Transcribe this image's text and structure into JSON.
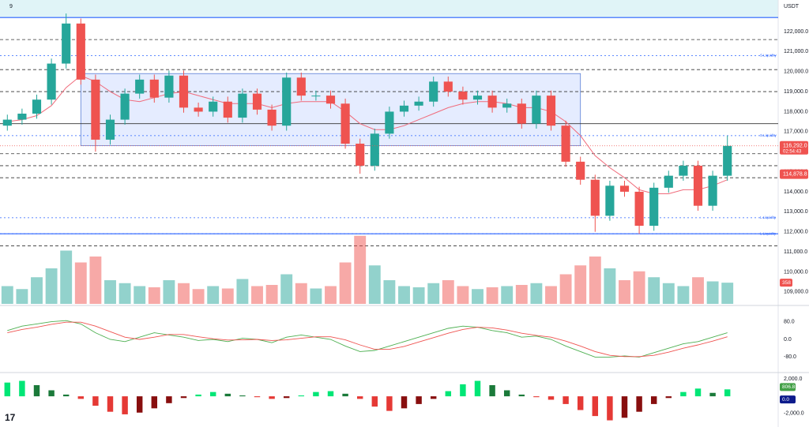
{
  "chart_data": {
    "type": "candlestick",
    "interval": "9",
    "currency": "USDT",
    "open": [
      117300,
      117600,
      117900,
      118600,
      120400,
      122400,
      119600,
      116600,
      117600,
      118900,
      119600,
      118700,
      119800,
      118200,
      118000,
      118500,
      117700,
      118900,
      118100,
      117300,
      119700,
      118800,
      118800,
      118400,
      116400,
      115300,
      116900,
      118000,
      118300,
      118500,
      119500,
      119000,
      118600,
      118800,
      118200,
      118400,
      117400,
      118800,
      117300,
      115500,
      114600,
      112800,
      114300,
      114000,
      112300,
      114200,
      114800,
      115300,
      113300,
      114800
    ],
    "high": [
      117850,
      118150,
      118850,
      120650,
      122900,
      122650,
      119850,
      117850,
      119150,
      119850,
      119850,
      120050,
      120050,
      118450,
      118750,
      118750,
      119150,
      119150,
      118350,
      119950,
      119950,
      119050,
      119050,
      118650,
      116650,
      117150,
      118250,
      118550,
      118750,
      119750,
      119750,
      119250,
      119050,
      119050,
      118650,
      118650,
      119050,
      119050,
      117550,
      115750,
      114850,
      114550,
      114550,
      114250,
      114450,
      115050,
      115550,
      115550,
      115050,
      116800
    ],
    "low": [
      117050,
      117350,
      117650,
      118350,
      120150,
      119350,
      116000,
      116350,
      117350,
      118650,
      118450,
      118450,
      117950,
      117750,
      117750,
      117450,
      117450,
      117850,
      117050,
      117050,
      118550,
      118550,
      118150,
      116150,
      114900,
      115050,
      116650,
      117750,
      118050,
      118250,
      118750,
      118350,
      118350,
      117950,
      117950,
      117150,
      117150,
      117050,
      115250,
      114350,
      112000,
      112550,
      113750,
      111900,
      112050,
      113950,
      114550,
      113050,
      113050,
      114550
    ],
    "close": [
      117600,
      117900,
      118600,
      120400,
      122400,
      119600,
      116600,
      117600,
      118900,
      119600,
      118700,
      119800,
      118200,
      118000,
      118500,
      117700,
      118900,
      118100,
      117300,
      119700,
      118800,
      118800,
      118400,
      116400,
      115300,
      116900,
      118000,
      118300,
      118500,
      119500,
      119000,
      118600,
      118800,
      118200,
      118400,
      117400,
      118800,
      117300,
      115500,
      114600,
      112800,
      114300,
      114000,
      112300,
      114200,
      114800,
      115300,
      113300,
      114800,
      116292
    ],
    "ma": [
      117500,
      117600,
      117800,
      118300,
      119200,
      119800,
      119500,
      119000,
      118600,
      118500,
      118700,
      118900,
      119000,
      118800,
      118600,
      118400,
      118400,
      118400,
      118200,
      118400,
      118500,
      118500,
      118500,
      118000,
      117400,
      117100,
      117100,
      117300,
      117600,
      117900,
      118200,
      118400,
      118500,
      118500,
      118400,
      118200,
      118200,
      118000,
      117500,
      116800,
      115800,
      115200,
      114700,
      114100,
      113900,
      113900,
      114100,
      114100,
      114300,
      114600
    ],
    "up_color": "#26a69a",
    "down_color": "#ef5350",
    "ma_color": "#f06b7b",
    "ylim": [
      108400,
      123575
    ],
    "yticks": [
      {
        "value": 109000,
        "label": "109,000.0"
      },
      {
        "value": 110000,
        "label": "110,000.0"
      },
      {
        "value": 111000,
        "label": "111,000.0"
      },
      {
        "value": 112000,
        "label": "112,000.0"
      },
      {
        "value": 113000,
        "label": "113,000.0"
      },
      {
        "value": 114000,
        "label": "114,000.0"
      },
      {
        "value": 115000,
        "label": "115,000.0"
      },
      {
        "value": 116000,
        "label": "116,000.0"
      },
      {
        "value": 117000,
        "label": "117,000.0"
      },
      {
        "value": 118000,
        "label": "118,000.0"
      },
      {
        "value": 119000,
        "label": "119,000.0"
      },
      {
        "value": 120000,
        "label": "120,000.0"
      },
      {
        "value": 121000,
        "label": "121,000.0"
      },
      {
        "value": 122000,
        "label": "122,000.0"
      }
    ],
    "dashed_levels": [
      121600,
      120100,
      119000,
      115900,
      115300,
      114700,
      111300
    ],
    "solid_levels": [
      122700,
      117400,
      111900
    ],
    "range_box": [
      116300,
      119900
    ],
    "zones": [
      {
        "value": 120800,
        "label": "S Liquidity"
      },
      {
        "value": 116800,
        "label": "S Liquidity"
      },
      {
        "value": 112700,
        "label": "L Liquidity"
      },
      {
        "value": 111900,
        "label": "L Liquidity"
      }
    ],
    "price_labels": [
      {
        "value": 116292,
        "label": "116,292.0",
        "sub": "02:54:43"
      },
      {
        "value": 114878.8,
        "label": "114,878.8"
      }
    ],
    "volume": [
      300,
      250,
      450,
      600,
      900,
      700,
      800,
      400,
      350,
      300,
      280,
      400,
      350,
      250,
      300,
      260,
      420,
      300,
      320,
      500,
      350,
      260,
      300,
      700,
      1150,
      650,
      400,
      300,
      280,
      350,
      400,
      300,
      250,
      280,
      300,
      320,
      350,
      300,
      500,
      650,
      800,
      600,
      400,
      550,
      450,
      350,
      300,
      450,
      380,
      358
    ],
    "vlim": [
      0,
      1200
    ],
    "volume_label": "358",
    "osc_k": [
      40,
      60,
      70,
      80,
      85,
      70,
      30,
      0,
      -10,
      10,
      30,
      20,
      10,
      -5,
      0,
      -10,
      5,
      0,
      -15,
      10,
      20,
      10,
      0,
      -30,
      -55,
      -50,
      -30,
      -10,
      10,
      30,
      50,
      60,
      55,
      40,
      30,
      10,
      15,
      0,
      -30,
      -55,
      -80,
      -80,
      -75,
      -80,
      -60,
      -40,
      -20,
      -10,
      10,
      30
    ],
    "osc_d": [
      30,
      45,
      55,
      68,
      78,
      78,
      60,
      35,
      10,
      0,
      10,
      22,
      22,
      12,
      3,
      -3,
      -2,
      0,
      -5,
      -2,
      5,
      12,
      12,
      -2,
      -25,
      -45,
      -45,
      -32,
      -12,
      8,
      28,
      45,
      55,
      52,
      42,
      28,
      18,
      10,
      -8,
      -30,
      -55,
      -72,
      -78,
      -78,
      -72,
      -58,
      -40,
      -25,
      -8,
      12
    ],
    "osc_ylim": [
      -100,
      100
    ],
    "osc_yticks": [
      {
        "value": 80,
        "label": "80.0"
      },
      {
        "value": 0,
        "label": "0.0"
      },
      {
        "value": -80,
        "label": "-80.0"
      }
    ],
    "hist": [
      1600,
      1800,
      1300,
      700,
      200,
      -300,
      -1100,
      -1800,
      -2100,
      -1900,
      -1400,
      -800,
      -200,
      200,
      500,
      300,
      100,
      -100,
      -300,
      -200,
      100,
      500,
      600,
      300,
      -300,
      -1200,
      -1700,
      -1400,
      -900,
      -300,
      600,
      1400,
      1800,
      1300,
      700,
      200,
      -100,
      -400,
      -900,
      -1600,
      -2300,
      -2800,
      -2500,
      -1800,
      -900,
      -200,
      500,
      900,
      400,
      806.8
    ],
    "hist_ylim": [
      -3300,
      2400
    ],
    "hist_yticks": [
      {
        "value": 2000,
        "label": "2,000.0"
      },
      {
        "value": -2000,
        "label": "-2,000.0"
      }
    ],
    "hist_labels": [
      {
        "value": 806.8,
        "label": "806.8"
      },
      {
        "value": 0,
        "label": "0.0"
      }
    ]
  }
}
